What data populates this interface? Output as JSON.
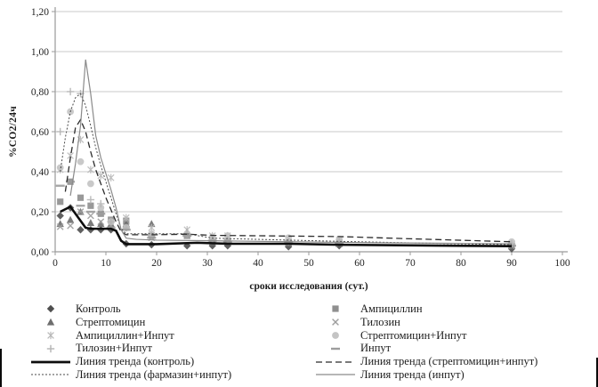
{
  "chart_data": {
    "type": "scatter",
    "title": "",
    "xlabel": "сроки исследования (сут.)",
    "ylabel": "%СО2/24ч",
    "xlim": [
      0,
      100
    ],
    "ylim": [
      0,
      1.2
    ],
    "x_tick_labels": [
      "0",
      "10",
      "20",
      "30",
      "40",
      "50",
      "60",
      "70",
      "80",
      "90",
      "100"
    ],
    "y_tick_labels": [
      "0,00",
      "0,20",
      "0,40",
      "0,60",
      "0,80",
      "1,00",
      "1,20"
    ],
    "grid": "horizontal",
    "grid_color": "#c9c9c9",
    "axis_color": "#9a9a9a",
    "days": [
      1,
      3,
      5,
      7,
      9,
      11,
      14,
      19,
      26,
      31,
      34,
      46,
      56,
      90
    ],
    "series": [
      {
        "name": "Контроль",
        "marker": "diamond",
        "color": "#4f4f4f",
        "values": [
          0.18,
          0.22,
          0.11,
          0.11,
          0.11,
          0.11,
          0.04,
          0.035,
          0.03,
          0.03,
          0.03,
          0.025,
          0.03,
          0.015
        ]
      },
      {
        "name": "Ампициллин",
        "marker": "square",
        "color": "#8f8f8f",
        "values": [
          0.25,
          0.35,
          0.27,
          0.23,
          0.19,
          0.16,
          0.155,
          0.08,
          0.08,
          0.05,
          0.05,
          0.045,
          0.05,
          0.03
        ]
      },
      {
        "name": "Стрептомицин",
        "marker": "triangle",
        "color": "#6e6e6e",
        "values": [
          0.14,
          0.16,
          0.2,
          0.145,
          0.14,
          0.14,
          0.14,
          0.14,
          0.1,
          0.06,
          0.06,
          0.05,
          0.04,
          0.03
        ]
      },
      {
        "name": "Тилозин",
        "marker": "x",
        "color": "#9d9d9d",
        "values": [
          0.125,
          0.13,
          0.2,
          0.18,
          0.15,
          0.13,
          0.125,
          0.07,
          0.08,
          0.05,
          0.05,
          0.045,
          0.04,
          0.03
        ]
      },
      {
        "name": "Ампициллин+Инпут",
        "marker": "star",
        "color": "#b8b8b8",
        "values": [
          0.41,
          0.48,
          0.56,
          0.41,
          0.38,
          0.37,
          0.17,
          0.12,
          0.11,
          0.08,
          0.08,
          0.065,
          0.06,
          0.04
        ]
      },
      {
        "name": "Стрептомицин+Инпут",
        "marker": "circle",
        "color": "#c4c4c4",
        "values": [
          0.42,
          0.7,
          0.45,
          0.34,
          0.22,
          0.15,
          0.12,
          0.09,
          0.09,
          0.075,
          0.08,
          0.07,
          0.06,
          0.05
        ]
      },
      {
        "name": "Тилозин+Инпут",
        "marker": "plus",
        "color": "#b4b4b4",
        "values": [
          0.6,
          0.8,
          0.79,
          0.26,
          0.24,
          0.15,
          0.12,
          0.08,
          0.09,
          0.06,
          0.06,
          0.05,
          0.05,
          0.04
        ]
      },
      {
        "name": "Инпут",
        "marker": "dash",
        "color": "#9d9d9d",
        "values": [
          0.33,
          0.35,
          0.23,
          0.2,
          0.19,
          0.12,
          0.11,
          0.07,
          0.08,
          0.055,
          0.05,
          0.05,
          0.045,
          0.03
        ]
      }
    ],
    "trend_lines": [
      {
        "name": "Линия тренда (контроль)",
        "style": "thick-solid",
        "color": "#0d0d0d",
        "width": 2.6,
        "dash": "",
        "points": [
          [
            1,
            0.2
          ],
          [
            3,
            0.225
          ],
          [
            4,
            0.19
          ],
          [
            5,
            0.155
          ],
          [
            6,
            0.12
          ],
          [
            7,
            0.115
          ],
          [
            11,
            0.115
          ],
          [
            12,
            0.105
          ],
          [
            13,
            0.055
          ],
          [
            14,
            0.038
          ],
          [
            20,
            0.038
          ],
          [
            28,
            0.045
          ],
          [
            34,
            0.04
          ],
          [
            46,
            0.04
          ],
          [
            56,
            0.035
          ],
          [
            90,
            0.028
          ]
        ]
      },
      {
        "name": "Линия тренда (стрептомицин+инпут)",
        "style": "dashed",
        "color": "#2b2b2b",
        "width": 1.3,
        "dash": "7 4",
        "points": [
          [
            2,
            0.3
          ],
          [
            3,
            0.47
          ],
          [
            4,
            0.62
          ],
          [
            5,
            0.66
          ],
          [
            6,
            0.6
          ],
          [
            7,
            0.5
          ],
          [
            8,
            0.41
          ],
          [
            9,
            0.34
          ],
          [
            10,
            0.27
          ],
          [
            11,
            0.21
          ],
          [
            12,
            0.15
          ],
          [
            13,
            0.1
          ],
          [
            14,
            0.085
          ],
          [
            20,
            0.085
          ],
          [
            26,
            0.088
          ],
          [
            31,
            0.082
          ],
          [
            40,
            0.08
          ],
          [
            56,
            0.076
          ],
          [
            70,
            0.065
          ],
          [
            90,
            0.05
          ]
        ]
      },
      {
        "name": "Линия тренда (фармазин+инпут)",
        "style": "dotted",
        "color": "#4a4a4a",
        "width": 1,
        "dash": "2 2",
        "points": [
          [
            1,
            0.4
          ],
          [
            2,
            0.57
          ],
          [
            3,
            0.7
          ],
          [
            4,
            0.77
          ],
          [
            5,
            0.79
          ],
          [
            6,
            0.73
          ],
          [
            7,
            0.63
          ],
          [
            8,
            0.52
          ],
          [
            9,
            0.43
          ],
          [
            10,
            0.35
          ],
          [
            11,
            0.27
          ],
          [
            12,
            0.19
          ],
          [
            13,
            0.115
          ],
          [
            14,
            0.09
          ],
          [
            20,
            0.09
          ],
          [
            26,
            0.09
          ],
          [
            31,
            0.068
          ],
          [
            40,
            0.062
          ],
          [
            56,
            0.052
          ],
          [
            75,
            0.042
          ],
          [
            90,
            0.035
          ]
        ]
      },
      {
        "name": "Линия тренда (инпут)",
        "style": "thin-solid",
        "color": "#8a8a8a",
        "width": 1.2,
        "dash": "",
        "points": [
          [
            3,
            0.28
          ],
          [
            4,
            0.44
          ],
          [
            5,
            0.63
          ],
          [
            6,
            0.96
          ],
          [
            7,
            0.79
          ],
          [
            8,
            0.58
          ],
          [
            9,
            0.47
          ],
          [
            10,
            0.39
          ],
          [
            11,
            0.31
          ],
          [
            12,
            0.22
          ],
          [
            13,
            0.11
          ],
          [
            14,
            0.068
          ],
          [
            16,
            0.062
          ],
          [
            20,
            0.058
          ],
          [
            31,
            0.055
          ],
          [
            46,
            0.05
          ],
          [
            56,
            0.047
          ],
          [
            90,
            0.04
          ]
        ]
      }
    ]
  },
  "legend": {
    "items": [
      {
        "label": "Контроль",
        "glyph": "diamond"
      },
      {
        "label": "Стрептомицин",
        "glyph": "triangle"
      },
      {
        "label": "Ампициллин+Инпут",
        "glyph": "star"
      },
      {
        "label": "Тилозин+Инпут",
        "glyph": "plus"
      },
      {
        "label": "Линия тренда (контроль)",
        "glyph": "thick-solid"
      },
      {
        "label": "Линия тренда (фармазин+инпут)",
        "glyph": "dotted"
      },
      {
        "label": "Ампициллин",
        "glyph": "square"
      },
      {
        "label": "Тилозин",
        "glyph": "x"
      },
      {
        "label": "Стрептомицин+Инпут",
        "glyph": "circle"
      },
      {
        "label": "Инпут",
        "glyph": "dash"
      },
      {
        "label": "Линия тренда (стрептомицин+инпут)",
        "glyph": "dashed"
      },
      {
        "label": "Линия тренда (инпут)",
        "glyph": "thin-solid"
      }
    ]
  }
}
